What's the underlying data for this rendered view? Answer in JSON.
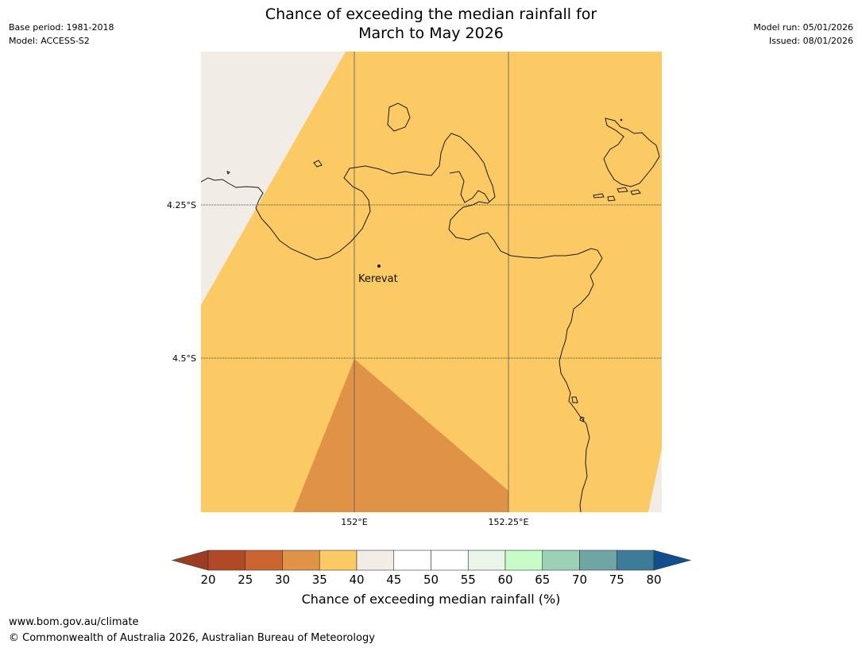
{
  "header": {
    "title_line1": "Chance of exceeding the median rainfall for",
    "title_line2": "March to May 2026",
    "base_period": "Base period: 1981-2018",
    "model": "Model: ACCESS-S2",
    "model_run": "Model run: 05/01/2026",
    "issued": "Issued: 08/01/2026"
  },
  "map": {
    "place_name": "Kerevat",
    "lat_labels": [
      "4.25°S",
      "4.5°S"
    ],
    "lon_labels": [
      "152°E",
      "152.25°E"
    ]
  },
  "colorbar": {
    "ticks": [
      "20",
      "25",
      "30",
      "35",
      "40",
      "45",
      "50",
      "55",
      "60",
      "65",
      "70",
      "75",
      "80"
    ],
    "label": "Chance of exceeding median rainfall (%)",
    "under_color": "#9c3c22",
    "over_color": "#0f4f8e",
    "colors": [
      "#b04a26",
      "#cc6432",
      "#e09346",
      "#fcca64",
      "#f1ece6",
      "#ffffff",
      "#ffffff",
      "#e9f5e9",
      "#c7fbc7",
      "#9dd1b7",
      "#6fa5a4",
      "#3d7b99"
    ]
  },
  "fill_colors": {
    "band_35_40": "#fcca64",
    "band_30_35": "#e09346",
    "band_40_45": "#f1ece6",
    "coast": "#1a1a1a"
  },
  "footer": {
    "url": "www.bom.gov.au/climate",
    "copyright": "© Commonwealth of Australia 2026, Australian Bureau of Meteorology"
  }
}
